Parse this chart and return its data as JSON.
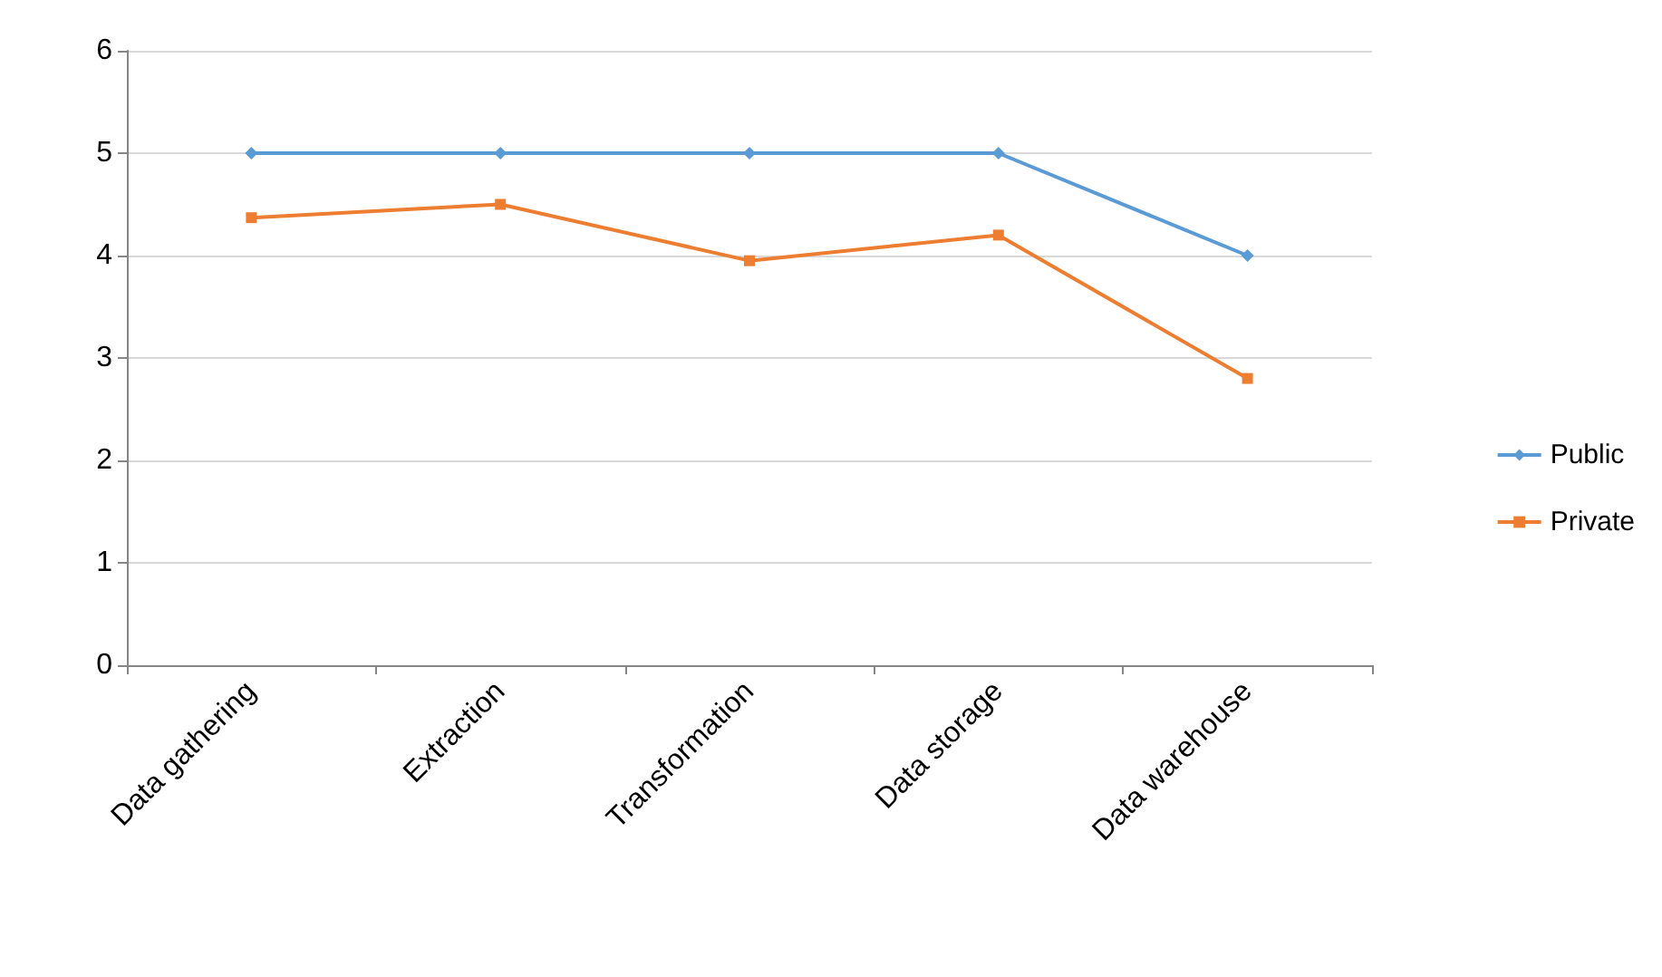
{
  "chart_data": {
    "type": "line",
    "categories": [
      "Data gathering",
      "Extraction",
      "Transformation",
      "Data storage",
      "Data warehouse"
    ],
    "series": [
      {
        "name": "Public",
        "color": "#5b9bd5",
        "marker": "diamond",
        "values": [
          5,
          5,
          5,
          5,
          4
        ]
      },
      {
        "name": "Private",
        "color": "#ed7d31",
        "marker": "square",
        "values": [
          4.37,
          4.5,
          3.95,
          4.2,
          2.8
        ]
      }
    ],
    "ylim": [
      0,
      6
    ],
    "yticks": [
      0,
      1,
      2,
      3,
      4,
      5,
      6
    ],
    "grid": "y",
    "legend": "right"
  }
}
